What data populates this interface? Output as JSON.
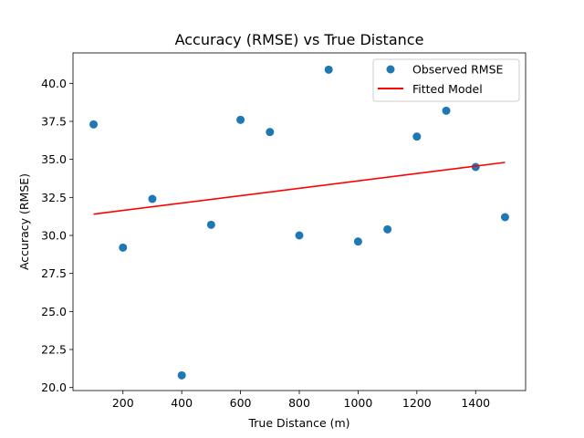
{
  "chart_data": {
    "type": "scatter",
    "title": "Accuracy (RMSE) vs True Distance",
    "xlabel": "True Distance (m)",
    "ylabel": "Accuracy (RMSE)",
    "xlim": [
      30,
      1570
    ],
    "ylim": [
      19.8,
      42.0
    ],
    "x_ticks": [
      200,
      400,
      600,
      800,
      1000,
      1200,
      1400
    ],
    "y_ticks": [
      20.0,
      22.5,
      25.0,
      27.5,
      30.0,
      32.5,
      35.0,
      37.5,
      40.0
    ],
    "x_tick_labels": [
      "200",
      "400",
      "600",
      "800",
      "1000",
      "1200",
      "1400"
    ],
    "y_tick_labels": [
      "20.0",
      "22.5",
      "25.0",
      "27.5",
      "30.0",
      "32.5",
      "35.0",
      "37.5",
      "40.0"
    ],
    "grid": false,
    "legend_position": "top-right",
    "series": [
      {
        "name": "Observed RMSE",
        "kind": "scatter",
        "color": "#1f77b4",
        "x": [
          100,
          200,
          300,
          400,
          500,
          600,
          700,
          800,
          900,
          1000,
          1100,
          1200,
          1300,
          1400,
          1500
        ],
        "y": [
          37.3,
          29.2,
          32.4,
          20.8,
          30.7,
          37.6,
          36.8,
          30.0,
          40.9,
          29.6,
          30.4,
          36.5,
          38.2,
          34.5,
          31.2
        ]
      },
      {
        "name": "Fitted Model",
        "kind": "line",
        "color": "#ff0000",
        "x": [
          100,
          1500
        ],
        "y": [
          31.4,
          34.8
        ]
      }
    ]
  }
}
